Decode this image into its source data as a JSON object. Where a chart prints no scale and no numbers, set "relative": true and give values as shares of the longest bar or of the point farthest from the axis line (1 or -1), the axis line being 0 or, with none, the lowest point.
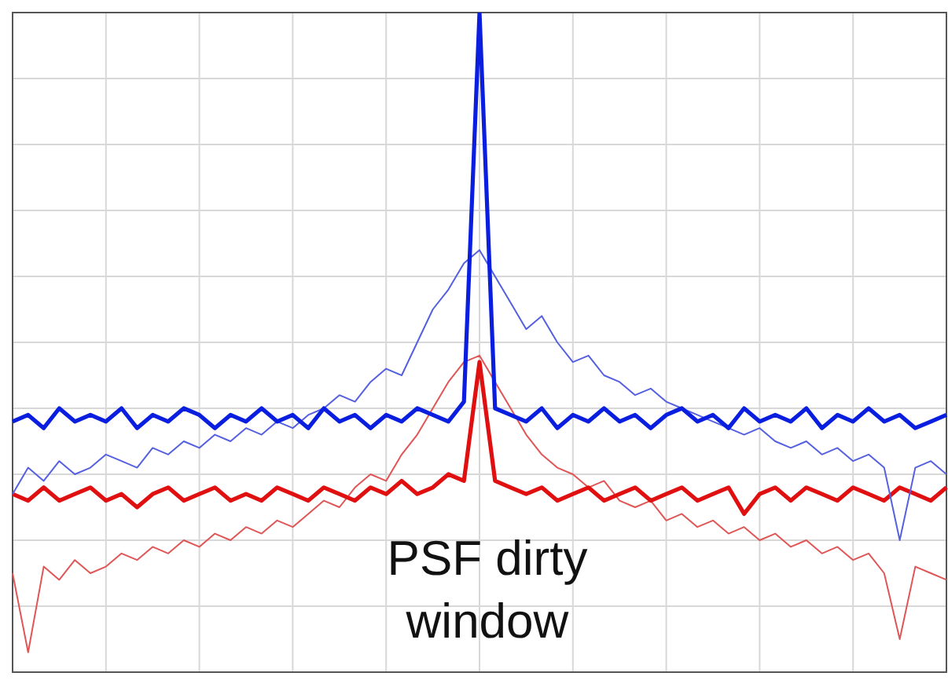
{
  "chart_data": {
    "type": "line",
    "relative": true,
    "grid": true,
    "legend": false,
    "line_style": "solid",
    "marker": "none",
    "categories": [
      null,
      null,
      null,
      null,
      null,
      null,
      null,
      null,
      null,
      null,
      null,
      null,
      null,
      null,
      null,
      null,
      null,
      null,
      null,
      null,
      null,
      null,
      null,
      null,
      null,
      null,
      null,
      null,
      null,
      null,
      null,
      null,
      null,
      null,
      null,
      null,
      null,
      null,
      null,
      null,
      null,
      null,
      null,
      null,
      null,
      null,
      null,
      null,
      null,
      null,
      null,
      null,
      null,
      null,
      null,
      null,
      null,
      null,
      null,
      null,
      null
    ],
    "series": [
      {
        "color": "#0a1ee0",
        "values": [
          0.38,
          0.39,
          0.37,
          0.4,
          0.38,
          0.39,
          0.38,
          0.4,
          0.37,
          0.39,
          0.38,
          0.4,
          0.39,
          0.37,
          0.39,
          0.38,
          0.4,
          0.38,
          0.39,
          0.37,
          0.4,
          0.38,
          0.39,
          0.37,
          0.39,
          0.38,
          0.4,
          0.39,
          0.38,
          0.41,
          1.0,
          0.4,
          0.39,
          0.38,
          0.4,
          0.37,
          0.39,
          0.38,
          0.4,
          0.38,
          0.39,
          0.37,
          0.39,
          0.4,
          0.38,
          0.39,
          0.37,
          0.4,
          0.38,
          0.39,
          0.38,
          0.4,
          0.37,
          0.39,
          0.38,
          0.4,
          0.38,
          0.39,
          0.37,
          0.38,
          0.39
        ]
      },
      {
        "color": "#5560e0",
        "values": [
          0.27,
          0.31,
          0.29,
          0.32,
          0.3,
          0.31,
          0.33,
          0.32,
          0.31,
          0.34,
          0.33,
          0.35,
          0.34,
          0.36,
          0.35,
          0.37,
          0.36,
          0.38,
          0.37,
          0.39,
          0.4,
          0.42,
          0.41,
          0.44,
          0.46,
          0.45,
          0.5,
          0.55,
          0.58,
          0.62,
          0.64,
          0.6,
          0.56,
          0.52,
          0.54,
          0.5,
          0.47,
          0.48,
          0.45,
          0.44,
          0.42,
          0.43,
          0.41,
          0.4,
          0.39,
          0.38,
          0.37,
          0.36,
          0.37,
          0.35,
          0.34,
          0.35,
          0.33,
          0.34,
          0.32,
          0.33,
          0.31,
          0.2,
          0.31,
          0.32,
          0.3
        ]
      },
      {
        "color": "#e01010",
        "values": [
          0.27,
          0.26,
          0.28,
          0.26,
          0.27,
          0.28,
          0.26,
          0.27,
          0.25,
          0.27,
          0.28,
          0.26,
          0.27,
          0.28,
          0.26,
          0.27,
          0.26,
          0.28,
          0.27,
          0.26,
          0.28,
          0.27,
          0.26,
          0.28,
          0.27,
          0.29,
          0.27,
          0.28,
          0.3,
          0.29,
          0.47,
          0.29,
          0.28,
          0.27,
          0.28,
          0.26,
          0.27,
          0.28,
          0.26,
          0.27,
          0.28,
          0.26,
          0.27,
          0.28,
          0.26,
          0.27,
          0.28,
          0.24,
          0.27,
          0.28,
          0.26,
          0.28,
          0.27,
          0.26,
          0.28,
          0.27,
          0.26,
          0.28,
          0.27,
          0.26,
          0.28
        ]
      },
      {
        "color": "#e05555",
        "values": [
          0.15,
          0.03,
          0.16,
          0.14,
          0.17,
          0.15,
          0.16,
          0.18,
          0.17,
          0.19,
          0.18,
          0.2,
          0.19,
          0.21,
          0.2,
          0.22,
          0.21,
          0.23,
          0.22,
          0.24,
          0.26,
          0.25,
          0.28,
          0.3,
          0.29,
          0.33,
          0.36,
          0.4,
          0.44,
          0.47,
          0.48,
          0.44,
          0.4,
          0.36,
          0.33,
          0.31,
          0.3,
          0.28,
          0.29,
          0.26,
          0.25,
          0.26,
          0.23,
          0.24,
          0.22,
          0.23,
          0.21,
          0.22,
          0.2,
          0.21,
          0.19,
          0.2,
          0.18,
          0.19,
          0.17,
          0.18,
          0.15,
          0.05,
          0.16,
          0.15,
          0.14
        ]
      }
    ],
    "annotations": [
      "PSF dirty window"
    ]
  }
}
